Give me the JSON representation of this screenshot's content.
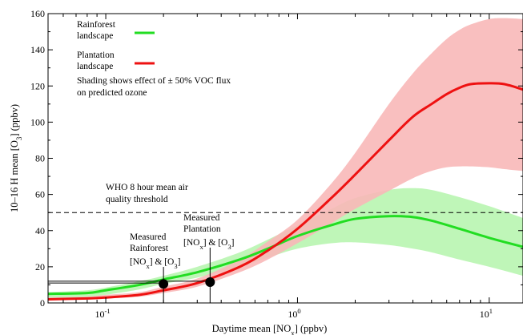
{
  "chart_data": {
    "type": "line",
    "xscale": "log",
    "xlim": [
      0.05,
      15
    ],
    "ylim": [
      0,
      160
    ],
    "grid": false,
    "xlabel": {
      "pre": "Daytime mean [NO",
      "sub": "x",
      "post": "] (ppbv)"
    },
    "ylabel": {
      "pre": "10–16 H mean [O",
      "sub": "3",
      "post": "] (ppbv)"
    },
    "xticks": [
      {
        "value": 0.1,
        "base": "10",
        "exp": "-1"
      },
      {
        "value": 1,
        "base": "10",
        "exp": "0"
      },
      {
        "value": 10,
        "base": "10",
        "exp": "1"
      }
    ],
    "yticks": [
      0,
      20,
      40,
      60,
      80,
      100,
      120,
      140,
      160
    ],
    "legend": {
      "position": "top-left",
      "entries": [
        {
          "lines": [
            "Rainforest",
            "landscape"
          ],
          "color": "#22dd22"
        },
        {
          "lines": [
            "Plantation",
            "landscape"
          ],
          "color": "#ee1111"
        }
      ]
    },
    "shading_note": [
      "Shading shows effect of ± 50% VOC flux",
      "on predicted ozone"
    ],
    "threshold": {
      "value": 50,
      "lines": [
        "WHO 8 hour mean air",
        "quality threshold"
      ],
      "style": "dashed"
    },
    "series": [
      {
        "name": "Rainforest landscape",
        "color": "#22dd22",
        "band_color": "#b8f5b0",
        "x": [
          0.05,
          0.08,
          0.1,
          0.15,
          0.2,
          0.3,
          0.5,
          0.7,
          1,
          1.5,
          2,
          3,
          4,
          5,
          7,
          10,
          15
        ],
        "y": [
          5,
          5.5,
          7,
          10,
          13,
          17,
          24,
          30,
          37,
          43,
          46.5,
          48,
          47.5,
          45.5,
          41,
          36,
          31
        ],
        "band_upper": [
          6,
          7,
          8.5,
          12,
          15,
          20,
          28,
          35,
          43,
          52,
          58,
          62.5,
          63.5,
          62.5,
          58.5,
          53.5,
          47
        ],
        "band_lower": [
          3,
          3.5,
          4.5,
          7.5,
          10.5,
          14,
          20,
          25,
          30,
          33,
          33.5,
          32,
          30,
          28,
          24,
          20,
          15
        ]
      },
      {
        "name": "Plantation landscape",
        "color": "#ee1111",
        "band_color": "#f8b8b8",
        "x": [
          0.05,
          0.08,
          0.1,
          0.15,
          0.2,
          0.3,
          0.5,
          0.7,
          1,
          1.5,
          2,
          3,
          4,
          5,
          6,
          7,
          8,
          10,
          12,
          15
        ],
        "y": [
          2,
          2.5,
          3,
          4.5,
          7,
          11,
          20,
          29,
          41,
          58,
          71,
          90,
          103,
          110,
          115.5,
          119,
          121,
          121.5,
          121,
          118
        ],
        "band_upper": [
          3,
          3.5,
          4.5,
          6,
          9,
          13.5,
          24,
          34,
          46,
          66,
          83,
          110,
          127,
          138,
          146,
          151,
          154,
          157,
          157.5,
          157
        ],
        "band_lower": [
          1.5,
          2,
          2.5,
          3.5,
          5.5,
          9,
          17,
          24,
          33,
          44,
          52,
          62,
          69,
          73,
          75,
          75.5,
          75.5,
          75,
          74,
          73
        ]
      }
    ],
    "measured": [
      {
        "x": 0.2,
        "y": 10.5,
        "h_line": 11,
        "lines": [
          "Measured",
          "Rainforest"
        ]
      },
      {
        "x": 0.35,
        "y": 11.5,
        "h_line": 12,
        "lines": [
          "Measured",
          "Plantation"
        ]
      }
    ],
    "measured_conc": {
      "no_pre": "[NO",
      "no_sub": "x",
      "mid": "] & [O",
      "o3_sub": "3",
      "post": "]"
    }
  }
}
